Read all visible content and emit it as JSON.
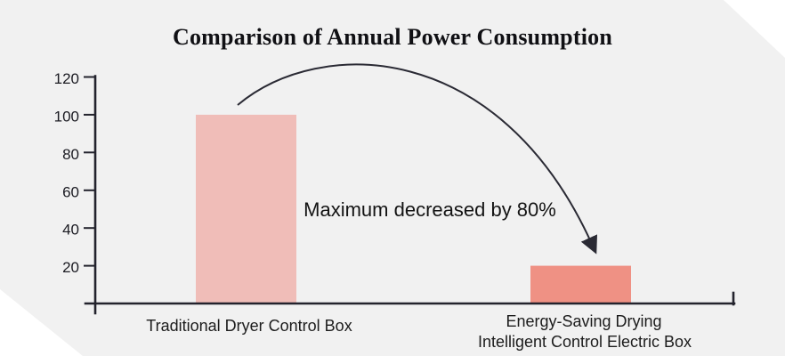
{
  "page": {
    "background_color": "#ffffff",
    "panel_color": "#f1f1f1"
  },
  "chart_data": {
    "type": "bar",
    "title": "Comparison of Annual Power Consumption",
    "categories": [
      "Traditional Dryer Control Box",
      "Energy-Saving Drying Intelligent Control Electric Box"
    ],
    "category_label_lines": [
      [
        "Traditional Dryer Control Box"
      ],
      [
        "Energy-Saving Drying",
        "Intelligent Control Electric Box"
      ]
    ],
    "values": [
      100,
      20
    ],
    "bar_colors": [
      "#f0bdb8",
      "#ef9184"
    ],
    "ylim": [
      0,
      120
    ],
    "yticks": [
      120,
      100,
      80,
      60,
      40,
      20
    ],
    "xlabel": "",
    "ylabel": "",
    "grid": false,
    "legend": false,
    "annotation": "Maximum decreased by 80%",
    "annotation_arrow": "curved arrow from top of first bar to top of second bar",
    "axis_color": "#23232d",
    "text_color": "#1c1c1c"
  }
}
